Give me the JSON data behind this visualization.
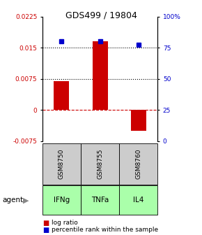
{
  "title": "GDS499 / 19804",
  "samples": [
    "GSM8750",
    "GSM8755",
    "GSM8760"
  ],
  "agents": [
    "IFNg",
    "TNFa",
    "IL4"
  ],
  "log_ratios": [
    0.007,
    0.0165,
    -0.005
  ],
  "percentile_ranks": [
    0.8,
    0.8,
    0.77
  ],
  "left_yticks": [
    0.0225,
    0.015,
    0.0075,
    0,
    -0.0075
  ],
  "left_ytick_labels": [
    "0.0225",
    "0.015",
    "0.0075",
    "0",
    "-0.0075"
  ],
  "right_yticks": [
    1.0,
    0.75,
    0.5,
    0.25,
    0.0
  ],
  "right_ytick_labels": [
    "100%",
    "75",
    "50",
    "25",
    "0"
  ],
  "ymin": -0.0075,
  "ymax": 0.0225,
  "bar_color": "#cc0000",
  "dot_color": "#0000cc",
  "agent_colors": [
    "#aaffaa",
    "#aaffaa",
    "#aaffaa"
  ],
  "sample_bg_color": "#cccccc",
  "hline_color": "#cc0000",
  "dotted_line_color": "#000000"
}
